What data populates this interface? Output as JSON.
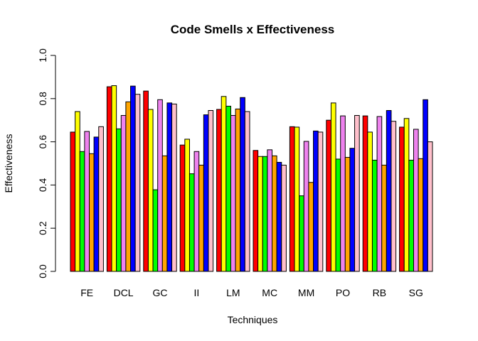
{
  "chart_data": {
    "type": "bar",
    "title": "Code Smells x Effectiveness",
    "xlabel": "Techniques",
    "ylabel": "Effectiveness",
    "ylim": [
      0,
      1
    ],
    "yticks": [
      "0.0",
      "0.2",
      "0.4",
      "0.6",
      "0.8",
      "1.0"
    ],
    "ytick_values": [
      0,
      0.2,
      0.4,
      0.6,
      0.8,
      1.0
    ],
    "grid": false,
    "legend": "none",
    "categories": [
      "FE",
      "DCL",
      "GC",
      "II",
      "LM",
      "MC",
      "MM",
      "PO",
      "RB",
      "SG"
    ],
    "series_colors": [
      "#ff0000",
      "#ffff00",
      "#00ff00",
      "#ee82ee",
      "#ffa500",
      "#0000ff",
      "#ffc0cb"
    ],
    "series": [
      {
        "values": [
          0.645,
          0.855,
          0.835,
          0.585,
          0.75,
          0.56,
          0.67,
          0.7,
          0.72,
          0.668
        ]
      },
      {
        "values": [
          0.74,
          0.86,
          0.75,
          0.612,
          0.81,
          0.532,
          0.668,
          0.78,
          0.645,
          0.708
        ]
      },
      {
        "values": [
          0.555,
          0.66,
          0.378,
          0.452,
          0.765,
          0.532,
          0.35,
          0.52,
          0.515,
          0.515
        ]
      },
      {
        "values": [
          0.648,
          0.722,
          0.795,
          0.555,
          0.722,
          0.563,
          0.602,
          0.72,
          0.717,
          0.658
        ]
      },
      {
        "values": [
          0.545,
          0.785,
          0.535,
          0.492,
          0.752,
          0.535,
          0.412,
          0.528,
          0.492,
          0.522
        ]
      },
      {
        "values": [
          0.622,
          0.858,
          0.78,
          0.725,
          0.805,
          0.505,
          0.65,
          0.57,
          0.745,
          0.795
        ]
      },
      {
        "values": [
          0.67,
          0.82,
          0.775,
          0.745,
          0.74,
          0.492,
          0.645,
          0.722,
          0.695,
          0.6
        ]
      }
    ]
  }
}
